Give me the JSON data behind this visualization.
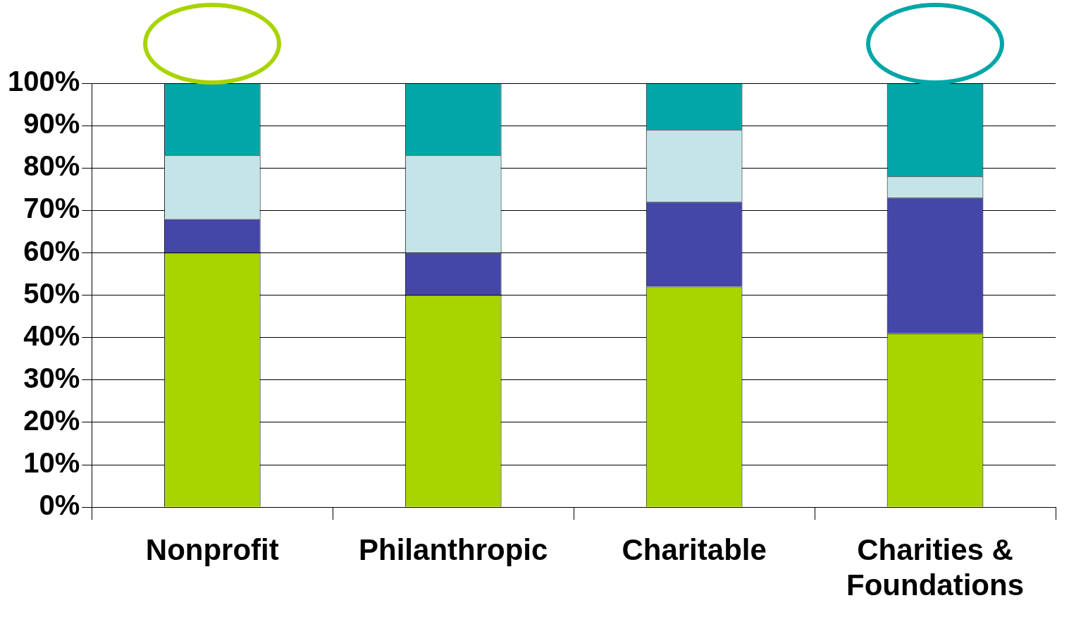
{
  "chart_data": {
    "type": "bar",
    "stacked": true,
    "categories": [
      "Nonprofit",
      "Philanthropic",
      "Charitable",
      "Charities & Foundations"
    ],
    "series": [
      {
        "color": "#a8d400",
        "values": [
          60,
          50,
          52,
          41
        ]
      },
      {
        "color": "#4446a8",
        "values": [
          8,
          10,
          20,
          32
        ]
      },
      {
        "color": "#c5e4e8",
        "values": [
          15,
          23,
          17,
          5
        ]
      },
      {
        "color": "#00a6a8",
        "values": [
          17,
          17,
          11,
          22
        ]
      }
    ],
    "ylim": [
      0,
      100
    ],
    "yticks": [
      {
        "value": 0,
        "label": "0%"
      },
      {
        "value": 10,
        "label": "10%"
      },
      {
        "value": 20,
        "label": "20%"
      },
      {
        "value": 30,
        "label": "30%"
      },
      {
        "value": 40,
        "label": "40%"
      },
      {
        "value": 50,
        "label": "50%"
      },
      {
        "value": 60,
        "label": "60%"
      },
      {
        "value": 70,
        "label": "70%"
      },
      {
        "value": 80,
        "label": "80%"
      },
      {
        "value": 90,
        "label": "90%"
      },
      {
        "value": 100,
        "label": "100%"
      }
    ],
    "grid": "y",
    "legend": false
  }
}
